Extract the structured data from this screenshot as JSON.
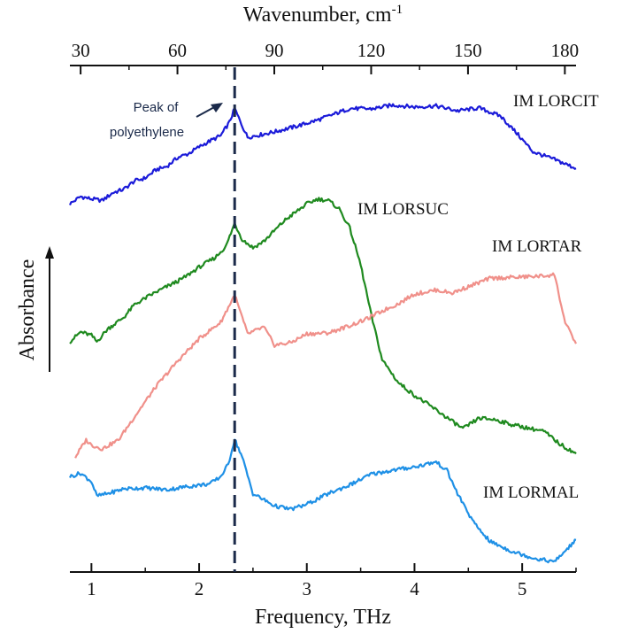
{
  "chart_data": {
    "type": "line",
    "bottom_axis": {
      "label": "Frequency, THz",
      "ticks": [
        1,
        2,
        3,
        4,
        5
      ],
      "range": [
        0.8,
        5.5
      ]
    },
    "top_axis": {
      "label": "Wavenumber, cm",
      "label_superscript": "-1",
      "ticks": [
        30,
        60,
        90,
        120,
        150,
        180
      ]
    },
    "y_axis": {
      "label": "Absorbance",
      "scale": "arbitrary units, stacked offsets",
      "range": [
        0,
        1
      ]
    },
    "series": [
      {
        "name": "IM LORCIT",
        "color": "#1b1bd9",
        "x": [
          0.8,
          0.9,
          1.0,
          1.1,
          1.2,
          1.3,
          1.4,
          1.5,
          1.6,
          1.7,
          1.8,
          1.9,
          2.0,
          2.1,
          2.2,
          2.28,
          2.33,
          2.38,
          2.45,
          2.55,
          2.7,
          2.9,
          3.1,
          3.3,
          3.4,
          3.6,
          3.8,
          4.0,
          4.2,
          4.4,
          4.6,
          4.8,
          4.95,
          5.1,
          5.3,
          5.5
        ],
        "y": [
          0.745,
          0.76,
          0.755,
          0.752,
          0.768,
          0.775,
          0.792,
          0.798,
          0.815,
          0.822,
          0.84,
          0.848,
          0.862,
          0.874,
          0.885,
          0.912,
          0.941,
          0.915,
          0.882,
          0.886,
          0.893,
          0.904,
          0.917,
          0.933,
          0.941,
          0.94,
          0.948,
          0.944,
          0.946,
          0.936,
          0.942,
          0.925,
          0.89,
          0.852,
          0.836,
          0.818
        ]
      },
      {
        "name": "IM LORSUC",
        "color": "#1f8a1f",
        "x": [
          0.8,
          0.9,
          1.0,
          1.05,
          1.15,
          1.3,
          1.4,
          1.55,
          1.7,
          1.85,
          2.0,
          2.15,
          2.25,
          2.33,
          2.4,
          2.5,
          2.6,
          2.8,
          3.0,
          3.1,
          3.2,
          3.3,
          3.4,
          3.5,
          3.6,
          3.7,
          3.85,
          4.0,
          4.2,
          4.45,
          4.6,
          4.75,
          4.9,
          5.05,
          5.2,
          5.35,
          5.5
        ],
        "y": [
          0.462,
          0.482,
          0.475,
          0.462,
          0.488,
          0.512,
          0.538,
          0.558,
          0.575,
          0.592,
          0.615,
          0.635,
          0.658,
          0.705,
          0.672,
          0.655,
          0.668,
          0.712,
          0.745,
          0.755,
          0.752,
          0.735,
          0.695,
          0.62,
          0.515,
          0.425,
          0.378,
          0.352,
          0.322,
          0.283,
          0.305,
          0.302,
          0.292,
          0.285,
          0.278,
          0.252,
          0.232
        ]
      },
      {
        "name": "IM LORTAR",
        "color": "#f0908a",
        "x": [
          0.85,
          0.95,
          1.0,
          1.1,
          1.25,
          1.4,
          1.6,
          1.8,
          2.0,
          2.2,
          2.33,
          2.45,
          2.6,
          2.7,
          2.85,
          3.0,
          3.2,
          3.4,
          3.55,
          3.7,
          3.85,
          4.0,
          4.2,
          4.35,
          4.5,
          4.7,
          5.0,
          5.2,
          5.3,
          5.4,
          5.5
        ],
        "y": [
          0.225,
          0.26,
          0.25,
          0.242,
          0.26,
          0.308,
          0.37,
          0.422,
          0.468,
          0.502,
          0.558,
          0.478,
          0.492,
          0.455,
          0.46,
          0.478,
          0.48,
          0.495,
          0.508,
          0.525,
          0.54,
          0.56,
          0.568,
          0.562,
          0.575,
          0.592,
          0.595,
          0.597,
          0.6,
          0.5,
          0.458
        ]
      },
      {
        "name": "IM LORMAL",
        "color": "#1e90e6",
        "x": [
          0.8,
          0.9,
          1.0,
          1.05,
          1.15,
          1.3,
          1.5,
          1.7,
          1.9,
          2.1,
          2.2,
          2.27,
          2.33,
          2.4,
          2.5,
          2.7,
          2.85,
          3.0,
          3.2,
          3.4,
          3.6,
          3.8,
          4.0,
          4.2,
          4.3,
          4.4,
          4.55,
          4.7,
          4.9,
          5.1,
          5.3,
          5.5
        ],
        "y": [
          0.185,
          0.192,
          0.175,
          0.145,
          0.15,
          0.16,
          0.162,
          0.158,
          0.165,
          0.17,
          0.185,
          0.21,
          0.262,
          0.225,
          0.15,
          0.125,
          0.118,
          0.128,
          0.15,
          0.168,
          0.19,
          0.198,
          0.205,
          0.215,
          0.198,
          0.15,
          0.09,
          0.052,
          0.032,
          0.018,
          0.01,
          0.055
        ]
      }
    ],
    "reference_line": {
      "x": 2.33,
      "style": "dashed",
      "color": "#1b2a4a"
    },
    "annotations": [
      {
        "line1": "Peak of",
        "line2": "polyethylene"
      }
    ],
    "grid": false,
    "legend": "inline labels next to each curve"
  }
}
